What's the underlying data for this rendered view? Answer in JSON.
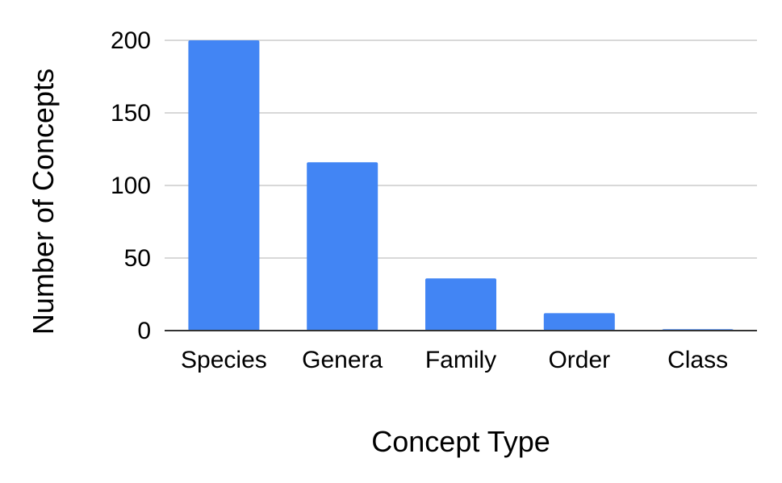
{
  "chart_data": {
    "type": "bar",
    "categories": [
      "Species",
      "Genera",
      "Family",
      "Order",
      "Class"
    ],
    "values": [
      200,
      116,
      36,
      12,
      1
    ],
    "title": "",
    "xlabel": "Concept Type",
    "ylabel": "Number of Concepts",
    "ylim": [
      0,
      200
    ],
    "yticks": [
      0,
      50,
      100,
      150,
      200
    ],
    "ytick_labels": [
      "0",
      "50",
      "100",
      "150",
      "200"
    ],
    "grid": true,
    "legend": "none",
    "bar_color": "#4285f4"
  }
}
